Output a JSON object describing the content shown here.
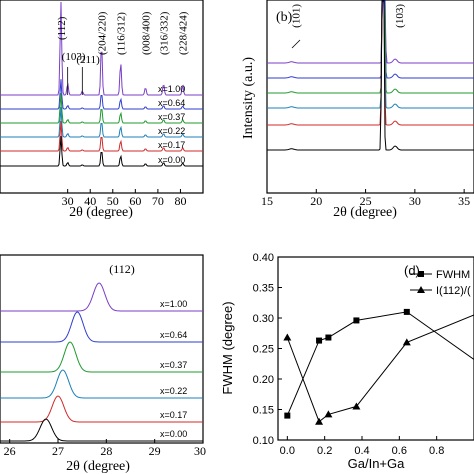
{
  "chart_data": [
    {
      "panel": "a",
      "type": "line",
      "xlabel": "2θ (degree)",
      "ylabel": "",
      "xlim": [
        0,
        90
      ],
      "xticks": [
        30,
        40,
        50,
        60,
        70,
        80
      ],
      "peaks": [
        {
          "label": "(112)",
          "pos": 27.0
        },
        {
          "label": "(103)",
          "pos": 30.0
        },
        {
          "label": "(211)",
          "pos": 36.5
        },
        {
          "label": "(204/220)",
          "pos": 45.0
        },
        {
          "label": "(116/312)",
          "pos": 53.5
        },
        {
          "label": "(008/400)",
          "pos": 64.5
        },
        {
          "label": "(316/332)",
          "pos": 72.5
        },
        {
          "label": "(228/424)",
          "pos": 81.0
        }
      ],
      "series": [
        {
          "name": "x=1.00",
          "color": "#7a3fc7"
        },
        {
          "name": "x=0.64",
          "color": "#2f3ed1"
        },
        {
          "name": "x=0.37",
          "color": "#1f9a2e"
        },
        {
          "name": "x=0.22",
          "color": "#1d7fb8"
        },
        {
          "name": "x=0.17",
          "color": "#d12a2a"
        },
        {
          "name": "x=0.00",
          "color": "#000000"
        }
      ]
    },
    {
      "panel": "b",
      "type": "line",
      "tag": "(b)",
      "ylabel": "Intensity (a.u.)",
      "xlabel": "2θ (degree)",
      "xlim": [
        15,
        36
      ],
      "xticks": [
        15,
        20,
        25,
        30,
        35
      ],
      "xticklabels": [
        "15",
        "20",
        "25",
        "30",
        "35"
      ],
      "peaks": [
        {
          "label": "(101)",
          "pos": 17.5
        },
        {
          "label": "(103)",
          "pos": 28.0
        }
      ],
      "series_colors": [
        "#7a3fc7",
        "#2f3ed1",
        "#1f9a2e",
        "#1d7fb8",
        "#d12a2a",
        "#000000"
      ]
    },
    {
      "panel": "c",
      "type": "line",
      "xlabel": "2θ (degree)",
      "xlim": [
        25.8,
        30
      ],
      "xticks": [
        26,
        27,
        28,
        29,
        30
      ],
      "xticklabels": [
        "26",
        "27",
        "28",
        "29",
        "30"
      ],
      "peak_label": "(112)",
      "series": [
        {
          "name": "x=1.00",
          "color": "#7a3fc7",
          "peak": 27.85
        },
        {
          "name": "x=0.64",
          "color": "#2f3ed1",
          "peak": 27.4
        },
        {
          "name": "x=0.37",
          "color": "#1f9a2e",
          "peak": 27.25
        },
        {
          "name": "x=0.22",
          "color": "#1d7fb8",
          "peak": 27.1
        },
        {
          "name": "x=0.17",
          "color": "#d12a2a",
          "peak": 27.0
        },
        {
          "name": "x=0.00",
          "color": "#000000",
          "peak": 26.75
        }
      ]
    },
    {
      "panel": "d",
      "type": "line",
      "tag": "(d)",
      "xlabel": "Ga/In+Ga",
      "ylabel": "FWHM (degree)",
      "xlim": [
        -0.05,
        1.0
      ],
      "ylim": [
        0.1,
        0.4
      ],
      "xticks": [
        0.0,
        0.2,
        0.4,
        0.6,
        0.8
      ],
      "xticklabels": [
        "0.0",
        "0.2",
        "0.4",
        "0.6",
        "0.8"
      ],
      "yticks": [
        0.1,
        0.15,
        0.2,
        0.25,
        0.3,
        0.35,
        0.4
      ],
      "yticklabels": [
        "0.10",
        "0.15",
        "0.20",
        "0.25",
        "0.30",
        "0.35",
        "0.40"
      ],
      "legend": [
        "FWHM",
        "I(112)/("
      ],
      "series": [
        {
          "name": "FWHM",
          "marker": "square",
          "x": [
            0.0,
            0.17,
            0.22,
            0.37,
            0.64,
            1.0
          ],
          "y": [
            0.14,
            0.263,
            0.268,
            0.296,
            0.31,
            0.232
          ]
        },
        {
          "name": "I(112)/(",
          "marker": "triangle",
          "x": [
            0.0,
            0.17,
            0.22,
            0.37,
            0.64,
            1.0
          ],
          "y": [
            0.268,
            0.13,
            0.142,
            0.155,
            0.26,
            0.305
          ]
        }
      ]
    }
  ]
}
